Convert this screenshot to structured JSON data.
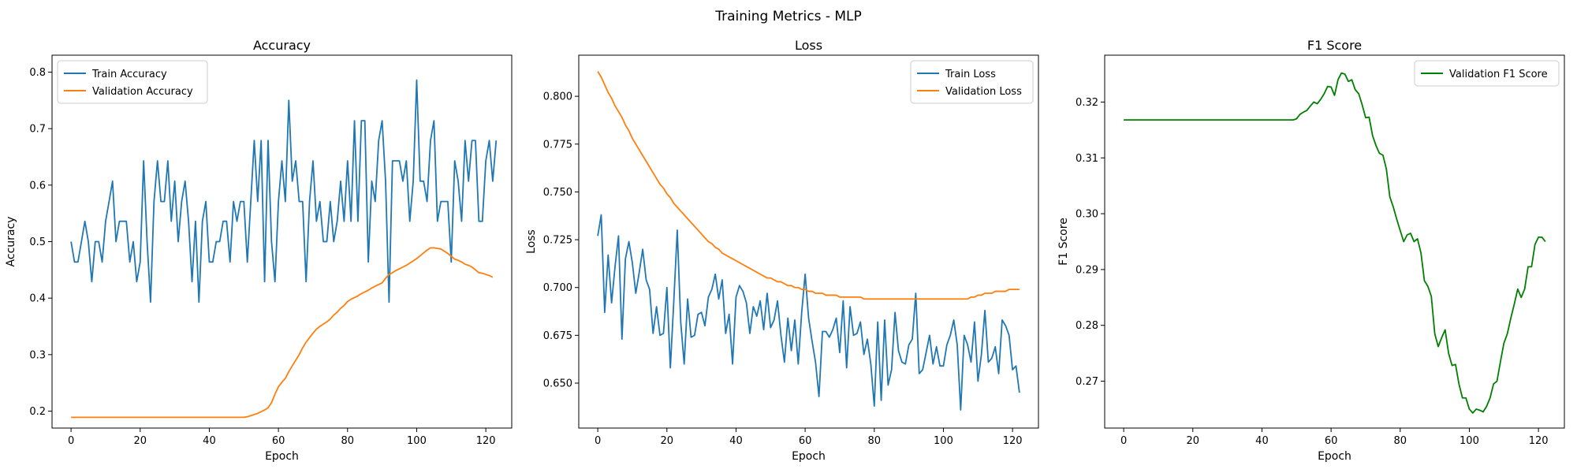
{
  "figure": {
    "suptitle": "Training Metrics - MLP"
  },
  "colors": {
    "blue": "#1f77b4",
    "orange": "#ff7f0e",
    "green": "#008000"
  },
  "chart_data": [
    {
      "type": "line",
      "title": "Accuracy",
      "xlabel": "Epoch",
      "ylabel": "Accuracy",
      "xlim": [
        -5.5,
        127.5
      ],
      "ylim": [
        0.17,
        0.83
      ],
      "xticks": [
        0,
        20,
        40,
        60,
        80,
        100,
        120
      ],
      "yticks": [
        0.2,
        0.3,
        0.4,
        0.5,
        0.6,
        0.7,
        0.8
      ],
      "tick_decimals": 1,
      "legend": "upper left",
      "grid": false,
      "series": [
        {
          "name": "Train Accuracy",
          "color": "#1f77b4",
          "x_start": 0,
          "values": [
            0.5,
            0.464,
            0.464,
            0.5,
            0.536,
            0.5,
            0.429,
            0.5,
            0.5,
            0.464,
            0.536,
            0.571,
            0.607,
            0.5,
            0.536,
            0.536,
            0.536,
            0.464,
            0.5,
            0.429,
            0.464,
            0.643,
            0.5,
            0.393,
            0.571,
            0.643,
            0.571,
            0.571,
            0.643,
            0.536,
            0.607,
            0.5,
            0.571,
            0.607,
            0.536,
            0.429,
            0.536,
            0.393,
            0.536,
            0.571,
            0.464,
            0.464,
            0.5,
            0.5,
            0.536,
            0.536,
            0.464,
            0.571,
            0.536,
            0.571,
            0.571,
            0.464,
            0.571,
            0.679,
            0.571,
            0.679,
            0.429,
            0.679,
            0.5,
            0.429,
            0.571,
            0.643,
            0.571,
            0.75,
            0.607,
            0.643,
            0.571,
            0.571,
            0.429,
            0.571,
            0.643,
            0.536,
            0.571,
            0.5,
            0.5,
            0.571,
            0.5,
            0.536,
            0.607,
            0.536,
            0.643,
            0.536,
            0.714,
            0.536,
            0.714,
            0.714,
            0.464,
            0.607,
            0.571,
            0.679,
            0.714,
            0.607,
            0.393,
            0.643,
            0.643,
            0.643,
            0.607,
            0.643,
            0.536,
            0.607,
            0.786,
            0.607,
            0.607,
            0.571,
            0.679,
            0.714,
            0.536,
            0.571,
            0.571,
            0.571,
            0.464,
            0.643,
            0.607,
            0.536,
            0.679,
            0.607,
            0.679,
            0.679,
            0.536,
            0.536,
            0.643,
            0.679,
            0.607,
            0.679
          ]
        },
        {
          "name": "Validation Accuracy",
          "color": "#ff7f0e",
          "x_start": 0,
          "values": [
            0.189,
            0.189,
            0.189,
            0.189,
            0.189,
            0.189,
            0.189,
            0.189,
            0.189,
            0.189,
            0.189,
            0.189,
            0.189,
            0.189,
            0.189,
            0.189,
            0.189,
            0.189,
            0.189,
            0.189,
            0.189,
            0.189,
            0.189,
            0.189,
            0.189,
            0.189,
            0.189,
            0.189,
            0.189,
            0.189,
            0.189,
            0.189,
            0.189,
            0.189,
            0.189,
            0.189,
            0.189,
            0.189,
            0.189,
            0.189,
            0.189,
            0.189,
            0.189,
            0.189,
            0.189,
            0.189,
            0.189,
            0.189,
            0.189,
            0.189,
            0.189,
            0.19,
            0.192,
            0.194,
            0.196,
            0.199,
            0.202,
            0.206,
            0.215,
            0.23,
            0.243,
            0.251,
            0.258,
            0.27,
            0.28,
            0.29,
            0.3,
            0.312,
            0.322,
            0.33,
            0.338,
            0.345,
            0.35,
            0.354,
            0.358,
            0.363,
            0.37,
            0.375,
            0.382,
            0.387,
            0.394,
            0.398,
            0.401,
            0.404,
            0.408,
            0.411,
            0.414,
            0.418,
            0.421,
            0.424,
            0.427,
            0.435,
            0.442,
            0.445,
            0.449,
            0.452,
            0.455,
            0.458,
            0.462,
            0.466,
            0.47,
            0.475,
            0.48,
            0.485,
            0.489,
            0.489,
            0.488,
            0.487,
            0.483,
            0.479,
            0.474,
            0.469,
            0.467,
            0.464,
            0.46,
            0.458,
            0.455,
            0.45,
            0.445,
            0.444,
            0.442,
            0.44,
            0.437
          ]
        }
      ]
    },
    {
      "type": "line",
      "title": "Loss",
      "xlabel": "Epoch",
      "ylabel": "Loss",
      "xlim": [
        -5.5,
        127.5
      ],
      "ylim": [
        0.6265,
        0.8215
      ],
      "xticks": [
        0,
        20,
        40,
        60,
        80,
        100,
        120
      ],
      "yticks": [
        0.65,
        0.675,
        0.7,
        0.725,
        0.75,
        0.775,
        0.8
      ],
      "tick_decimals": 3,
      "legend": "upper right",
      "grid": false,
      "series": [
        {
          "name": "Train Loss",
          "color": "#1f77b4",
          "x_start": 0,
          "values": [
            0.727,
            0.738,
            0.687,
            0.717,
            0.692,
            0.711,
            0.727,
            0.673,
            0.715,
            0.724,
            0.713,
            0.697,
            0.708,
            0.72,
            0.704,
            0.699,
            0.676,
            0.69,
            0.675,
            0.676,
            0.7,
            0.658,
            0.693,
            0.73,
            0.682,
            0.66,
            0.694,
            0.674,
            0.675,
            0.686,
            0.687,
            0.68,
            0.695,
            0.699,
            0.707,
            0.694,
            0.704,
            0.676,
            0.686,
            0.66,
            0.695,
            0.701,
            0.698,
            0.692,
            0.676,
            0.69,
            0.685,
            0.693,
            0.678,
            0.697,
            0.679,
            0.683,
            0.693,
            0.675,
            0.661,
            0.684,
            0.667,
            0.683,
            0.66,
            0.687,
            0.707,
            0.684,
            0.672,
            0.661,
            0.643,
            0.677,
            0.677,
            0.674,
            0.678,
            0.684,
            0.666,
            0.693,
            0.658,
            0.69,
            0.675,
            0.676,
            0.682,
            0.665,
            0.673,
            0.66,
            0.638,
            0.682,
            0.641,
            0.683,
            0.649,
            0.657,
            0.687,
            0.667,
            0.661,
            0.66,
            0.67,
            0.673,
            0.697,
            0.655,
            0.657,
            0.666,
            0.675,
            0.66,
            0.669,
            0.659,
            0.659,
            0.67,
            0.675,
            0.683,
            0.67,
            0.636,
            0.675,
            0.67,
            0.661,
            0.682,
            0.651,
            0.665,
            0.688,
            0.661,
            0.663,
            0.669,
            0.655,
            0.683,
            0.68,
            0.675,
            0.657,
            0.659,
            0.645
          ]
        },
        {
          "name": "Validation Loss",
          "color": "#ff7f0e",
          "x_start": 0,
          "values": [
            0.813,
            0.81,
            0.806,
            0.802,
            0.799,
            0.795,
            0.792,
            0.789,
            0.785,
            0.782,
            0.778,
            0.775,
            0.772,
            0.769,
            0.766,
            0.763,
            0.76,
            0.757,
            0.754,
            0.752,
            0.749,
            0.747,
            0.744,
            0.742,
            0.74,
            0.738,
            0.736,
            0.734,
            0.732,
            0.73,
            0.728,
            0.726,
            0.724,
            0.723,
            0.721,
            0.72,
            0.718,
            0.717,
            0.716,
            0.715,
            0.714,
            0.713,
            0.712,
            0.711,
            0.71,
            0.709,
            0.708,
            0.707,
            0.706,
            0.705,
            0.705,
            0.704,
            0.703,
            0.703,
            0.702,
            0.701,
            0.701,
            0.7,
            0.7,
            0.699,
            0.699,
            0.698,
            0.698,
            0.697,
            0.697,
            0.697,
            0.696,
            0.696,
            0.696,
            0.696,
            0.695,
            0.695,
            0.695,
            0.695,
            0.695,
            0.695,
            0.695,
            0.694,
            0.694,
            0.694,
            0.694,
            0.694,
            0.694,
            0.694,
            0.694,
            0.694,
            0.694,
            0.694,
            0.694,
            0.694,
            0.694,
            0.694,
            0.694,
            0.694,
            0.694,
            0.694,
            0.694,
            0.694,
            0.694,
            0.694,
            0.694,
            0.694,
            0.694,
            0.694,
            0.694,
            0.694,
            0.694,
            0.694,
            0.695,
            0.695,
            0.696,
            0.696,
            0.697,
            0.697,
            0.697,
            0.698,
            0.698,
            0.698,
            0.698,
            0.699,
            0.699,
            0.699,
            0.699
          ]
        }
      ]
    },
    {
      "type": "line",
      "title": "F1 Score",
      "xlabel": "Epoch",
      "ylabel": "F1 Score",
      "xlim": [
        -5.5,
        127.5
      ],
      "ylim": [
        0.2616,
        0.3284
      ],
      "xticks": [
        0,
        20,
        40,
        60,
        80,
        100,
        120
      ],
      "yticks": [
        0.27,
        0.28,
        0.29,
        0.3,
        0.31,
        0.32
      ],
      "tick_decimals": 2,
      "legend": "upper right",
      "grid": false,
      "series": [
        {
          "name": "Validation F1 Score",
          "color": "#008000",
          "x_start": 0,
          "values": [
            0.3168,
            0.3168,
            0.3168,
            0.3168,
            0.3168,
            0.3168,
            0.3168,
            0.3168,
            0.3168,
            0.3168,
            0.3168,
            0.3168,
            0.3168,
            0.3168,
            0.3168,
            0.3168,
            0.3168,
            0.3168,
            0.3168,
            0.3168,
            0.3168,
            0.3168,
            0.3168,
            0.3168,
            0.3168,
            0.3168,
            0.3168,
            0.3168,
            0.3168,
            0.3168,
            0.3168,
            0.3168,
            0.3168,
            0.3168,
            0.3168,
            0.3168,
            0.3168,
            0.3168,
            0.3168,
            0.3168,
            0.3168,
            0.3168,
            0.3168,
            0.3168,
            0.3168,
            0.3168,
            0.3168,
            0.3168,
            0.3168,
            0.3168,
            0.317,
            0.3178,
            0.3182,
            0.3185,
            0.3193,
            0.32,
            0.3197,
            0.3205,
            0.3215,
            0.3228,
            0.3227,
            0.3212,
            0.324,
            0.3252,
            0.325,
            0.3237,
            0.324,
            0.3222,
            0.3215,
            0.3195,
            0.3172,
            0.3173,
            0.314,
            0.3122,
            0.3108,
            0.3105,
            0.308,
            0.303,
            0.3012,
            0.299,
            0.297,
            0.295,
            0.2962,
            0.2965,
            0.295,
            0.2955,
            0.293,
            0.288,
            0.287,
            0.2852,
            0.2785,
            0.2762,
            0.2778,
            0.2792,
            0.275,
            0.2728,
            0.273,
            0.2695,
            0.267,
            0.267,
            0.265,
            0.2643,
            0.265,
            0.2648,
            0.2645,
            0.2655,
            0.267,
            0.2695,
            0.27,
            0.2735,
            0.2768,
            0.2785,
            0.2813,
            0.2838,
            0.2865,
            0.285,
            0.2865,
            0.2905,
            0.2905,
            0.2945,
            0.2958,
            0.2958,
            0.295
          ]
        }
      ]
    }
  ]
}
